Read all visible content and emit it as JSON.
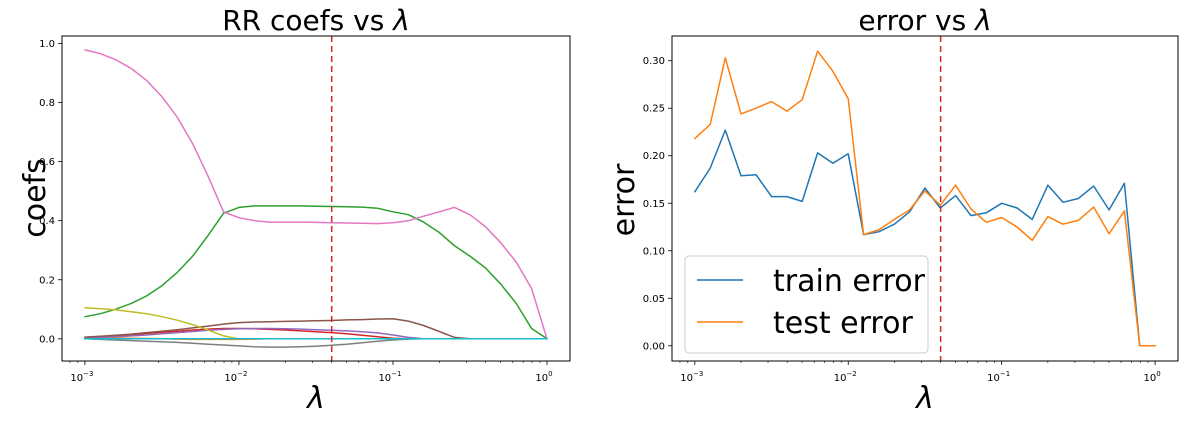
{
  "chart_data": [
    {
      "type": "line",
      "title": "RR coefs vs",
      "title_symbol": "λ",
      "xlabel": "λ",
      "ylabel": "coefs",
      "x_scale": "log",
      "xlim": [
        0.00071,
        1.41
      ],
      "ylim": [
        -0.075,
        1.025
      ],
      "xticks": [
        {
          "value": 0.001,
          "base": "10",
          "exp": "−3"
        },
        {
          "value": 0.01,
          "base": "10",
          "exp": "−2"
        },
        {
          "value": 0.1,
          "base": "10",
          "exp": "−1"
        },
        {
          "value": 1,
          "base": "10",
          "exp": "0"
        }
      ],
      "yticks": [
        {
          "value": 0.0,
          "label": "0.0"
        },
        {
          "value": 0.2,
          "label": "0.2"
        },
        {
          "value": 0.4,
          "label": "0.4"
        },
        {
          "value": 0.6,
          "label": "0.6"
        },
        {
          "value": 0.8,
          "label": "0.8"
        },
        {
          "value": 1.0,
          "label": "1.0"
        }
      ],
      "grid": false,
      "vline": {
        "x": 0.04,
        "color": "#d62728",
        "style": "dashed"
      },
      "x": [
        0.001,
        0.00126,
        0.00158,
        0.002,
        0.00251,
        0.00316,
        0.00398,
        0.00501,
        0.00631,
        0.00794,
        0.01,
        0.0126,
        0.0158,
        0.02,
        0.0251,
        0.0316,
        0.0398,
        0.0501,
        0.0631,
        0.0794,
        0.1,
        0.126,
        0.158,
        0.2,
        0.251,
        0.316,
        0.398,
        0.501,
        0.631,
        0.794,
        1.0
      ],
      "series": [
        {
          "color": "#1f77b4",
          "values": [
            0.0,
            0.0,
            0.0,
            0.0,
            0.0,
            0.0,
            0.0,
            0.0,
            0.0,
            0.0,
            0.0,
            0.0,
            0.0,
            0.0,
            0.0,
            0.0,
            0.0,
            0.0,
            0.0,
            0.0,
            0.0,
            0.0,
            0.0,
            0.0,
            0.0,
            0.0,
            0.0,
            0.0,
            0.0,
            0.0,
            0.0
          ]
        },
        {
          "color": "#ff7f0e",
          "values": [
            0.005,
            0.004,
            0.003,
            0.002,
            0.001,
            0.0,
            -0.001,
            -0.002,
            -0.002,
            -0.002,
            -0.002,
            -0.001,
            0.0,
            0.0,
            0.0,
            0.0,
            0.0,
            0.0,
            0.0,
            0.0,
            0.0,
            0.0,
            0.0,
            0.0,
            0.0,
            0.0,
            0.0,
            0.0,
            0.0,
            0.0,
            0.0
          ]
        },
        {
          "color": "#2ca02c",
          "values": [
            0.075,
            0.085,
            0.1,
            0.12,
            0.145,
            0.18,
            0.225,
            0.28,
            0.35,
            0.425,
            0.445,
            0.45,
            0.45,
            0.45,
            0.45,
            0.449,
            0.448,
            0.447,
            0.446,
            0.442,
            0.43,
            0.42,
            0.395,
            0.36,
            0.315,
            0.28,
            0.24,
            0.185,
            0.12,
            0.035,
            0.0
          ]
        },
        {
          "color": "#d62728",
          "values": [
            0.005,
            0.008,
            0.011,
            0.014,
            0.018,
            0.022,
            0.026,
            0.03,
            0.033,
            0.035,
            0.035,
            0.034,
            0.032,
            0.03,
            0.027,
            0.024,
            0.021,
            0.017,
            0.012,
            0.007,
            0.002,
            0.0,
            0.0,
            0.0,
            0.0,
            0.0,
            0.0,
            0.0,
            0.0,
            0.0,
            0.0
          ]
        },
        {
          "color": "#9467bd",
          "values": [
            0.003,
            0.005,
            0.007,
            0.01,
            0.013,
            0.017,
            0.021,
            0.025,
            0.029,
            0.032,
            0.034,
            0.035,
            0.035,
            0.034,
            0.033,
            0.031,
            0.029,
            0.027,
            0.024,
            0.02,
            0.013,
            0.005,
            0.0,
            0.0,
            0.0,
            0.0,
            0.0,
            0.0,
            0.0,
            0.0,
            0.0
          ]
        },
        {
          "color": "#8c564b",
          "values": [
            0.006,
            0.009,
            0.012,
            0.016,
            0.021,
            0.026,
            0.031,
            0.037,
            0.043,
            0.05,
            0.055,
            0.057,
            0.058,
            0.059,
            0.06,
            0.061,
            0.062,
            0.064,
            0.065,
            0.067,
            0.068,
            0.06,
            0.045,
            0.025,
            0.005,
            0.0,
            0.0,
            0.0,
            0.0,
            0.0,
            0.0
          ]
        },
        {
          "color": "#e377c2",
          "values": [
            0.978,
            0.965,
            0.945,
            0.915,
            0.875,
            0.82,
            0.75,
            0.66,
            0.55,
            0.43,
            0.41,
            0.4,
            0.395,
            0.395,
            0.395,
            0.394,
            0.393,
            0.392,
            0.391,
            0.39,
            0.393,
            0.4,
            0.415,
            0.43,
            0.445,
            0.42,
            0.38,
            0.325,
            0.26,
            0.17,
            0.0
          ]
        },
        {
          "color": "#7f7f7f",
          "values": [
            0.0,
            -0.002,
            -0.004,
            -0.006,
            -0.008,
            -0.01,
            -0.012,
            -0.015,
            -0.018,
            -0.021,
            -0.024,
            -0.027,
            -0.028,
            -0.028,
            -0.027,
            -0.025,
            -0.022,
            -0.018,
            -0.013,
            -0.008,
            -0.004,
            -0.001,
            0.0,
            0.0,
            0.0,
            0.0,
            0.0,
            0.0,
            0.0,
            0.0,
            0.0
          ]
        },
        {
          "color": "#bcbd22",
          "values": [
            0.105,
            0.102,
            0.098,
            0.092,
            0.085,
            0.075,
            0.063,
            0.048,
            0.03,
            0.01,
            0.0,
            0.0,
            0.0,
            0.0,
            0.0,
            0.0,
            0.0,
            0.0,
            0.0,
            0.0,
            0.0,
            0.0,
            0.0,
            0.0,
            0.0,
            0.0,
            0.0,
            0.0,
            0.0,
            0.0,
            0.0
          ]
        },
        {
          "color": "#17becf",
          "values": [
            0.0,
            0.0,
            0.0,
            0.0,
            0.0,
            0.0,
            0.0,
            0.0,
            0.0,
            0.0,
            0.0,
            0.0,
            0.0,
            0.0,
            0.0,
            0.0,
            0.0,
            0.0,
            0.0,
            0.0,
            0.0,
            0.0,
            0.0,
            0.0,
            0.0,
            0.0,
            0.0,
            0.0,
            0.0,
            0.0,
            0.0
          ]
        }
      ]
    },
    {
      "type": "line",
      "title": "error vs",
      "title_symbol": "λ",
      "xlabel": "λ",
      "ylabel": "error",
      "x_scale": "log",
      "xlim": [
        0.00071,
        1.41
      ],
      "ylim": [
        -0.016,
        0.326
      ],
      "xticks": [
        {
          "value": 0.001,
          "base": "10",
          "exp": "−3"
        },
        {
          "value": 0.01,
          "base": "10",
          "exp": "−2"
        },
        {
          "value": 0.1,
          "base": "10",
          "exp": "−1"
        },
        {
          "value": 1,
          "base": "10",
          "exp": "0"
        }
      ],
      "yticks": [
        {
          "value": 0.0,
          "label": "0.00"
        },
        {
          "value": 0.05,
          "label": "0.05"
        },
        {
          "value": 0.1,
          "label": "0.10"
        },
        {
          "value": 0.15,
          "label": "0.15"
        },
        {
          "value": 0.2,
          "label": "0.20"
        },
        {
          "value": 0.25,
          "label": "0.25"
        },
        {
          "value": 0.3,
          "label": "0.30"
        }
      ],
      "grid": false,
      "legend_position": "lower-left",
      "vline": {
        "x": 0.04,
        "color": "#d62728",
        "style": "dashed"
      },
      "x": [
        0.001,
        0.00126,
        0.00158,
        0.002,
        0.00251,
        0.00316,
        0.00398,
        0.00501,
        0.00631,
        0.00794,
        0.01,
        0.0126,
        0.0158,
        0.02,
        0.0251,
        0.0316,
        0.0398,
        0.0501,
        0.0631,
        0.0794,
        0.1,
        0.126,
        0.158,
        0.2,
        0.251,
        0.316,
        0.398,
        0.501,
        0.631,
        0.794,
        1.0
      ],
      "series": [
        {
          "name": "train error",
          "color": "#1f77b4",
          "values": [
            0.162,
            0.187,
            0.227,
            0.179,
            0.18,
            0.157,
            0.157,
            0.152,
            0.203,
            0.192,
            0.202,
            0.117,
            0.12,
            0.128,
            0.141,
            0.166,
            0.145,
            0.158,
            0.137,
            0.14,
            0.15,
            0.145,
            0.133,
            0.169,
            0.151,
            0.155,
            0.168,
            0.143,
            0.171,
            0.0,
            0.0
          ]
        },
        {
          "name": "test error",
          "color": "#ff7f0e",
          "values": [
            0.218,
            0.233,
            0.303,
            0.244,
            0.25,
            0.257,
            0.247,
            0.259,
            0.31,
            0.289,
            0.26,
            0.117,
            0.122,
            0.133,
            0.143,
            0.163,
            0.148,
            0.169,
            0.144,
            0.13,
            0.135,
            0.125,
            0.111,
            0.136,
            0.128,
            0.132,
            0.146,
            0.118,
            0.142,
            0.0,
            0.0
          ]
        }
      ]
    }
  ]
}
